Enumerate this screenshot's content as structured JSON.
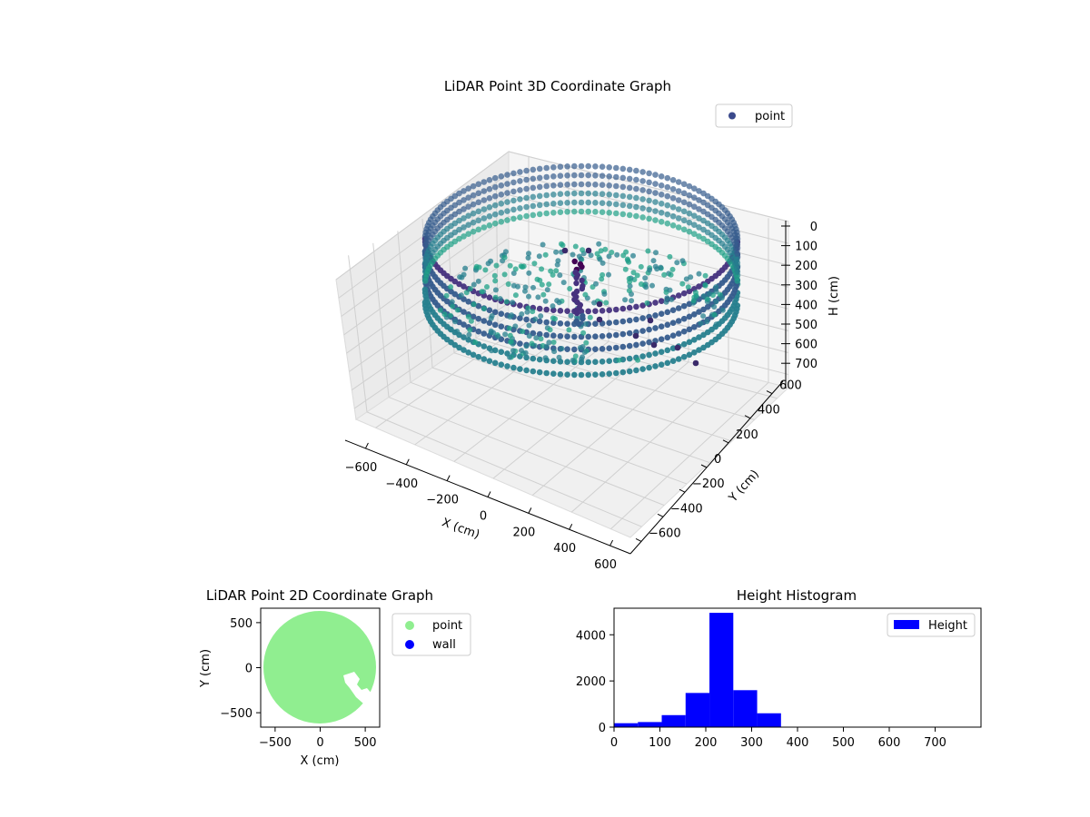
{
  "chart_data": [
    {
      "type": "scatter",
      "projection": "3d",
      "title": "LiDAR Point 3D Coordinate Graph",
      "xlabel": "X (cm)",
      "ylabel": "Y (cm)",
      "zlabel": "H (cm)",
      "xlim": [
        -700,
        700
      ],
      "ylim": [
        -700,
        700
      ],
      "zlim": [
        0,
        760
      ],
      "z_inverted": true,
      "x_ticks": [
        "−600",
        "−400",
        "−200",
        "0",
        "200",
        "400",
        "600"
      ],
      "y_ticks": [
        "−600",
        "−400",
        "−200",
        "0",
        "200",
        "400",
        "600"
      ],
      "z_ticks": [
        "0",
        "100",
        "200",
        "300",
        "400",
        "500",
        "600",
        "700"
      ],
      "grid": true,
      "colormap": "viridis",
      "legend": {
        "position": "top-right",
        "entries": [
          "point"
        ]
      },
      "series": [
        {
          "name": "point",
          "color": "#3b4a8c",
          "description_values": {
            "outer_wall_radius_cm": 650,
            "wall_height_range_cm": [
              0,
              260
            ],
            "floor_height_cm": 240,
            "opening_x_cm": [
              150,
              600
            ],
            "opening_y_cm": [
              -250,
              100
            ]
          }
        }
      ]
    },
    {
      "type": "scatter",
      "title": "LiDAR Point 2D Coordinate Graph",
      "xlabel": "X (cm)",
      "ylabel": "Y (cm)",
      "xlim": [
        -660,
        660
      ],
      "ylim": [
        -660,
        660
      ],
      "x_ticks": [
        "−500",
        "0",
        "500"
      ],
      "y_ticks": [
        "500",
        "0",
        "−500"
      ],
      "legend": {
        "position": "outside-right",
        "entries": [
          "point",
          "wall"
        ]
      },
      "series": [
        {
          "name": "point",
          "color": "#90ee90",
          "center": [
            0,
            0
          ],
          "radius": 600
        },
        {
          "name": "wall",
          "color": "#0000ff"
        }
      ]
    },
    {
      "type": "bar",
      "title": "Height Histogram",
      "xlim": [
        0,
        800
      ],
      "ylim": [
        0,
        5150
      ],
      "x_ticks": [
        "0",
        "100",
        "200",
        "300",
        "400",
        "500",
        "600",
        "700"
      ],
      "y_ticks": [
        "0",
        "2000",
        "4000"
      ],
      "legend": {
        "position": "top-right",
        "entries": [
          "Height"
        ]
      },
      "bin_width": 52,
      "bins": [
        {
          "x0": 0,
          "count": 170
        },
        {
          "x0": 52,
          "count": 220
        },
        {
          "x0": 104,
          "count": 520
        },
        {
          "x0": 156,
          "count": 1480
        },
        {
          "x0": 208,
          "count": 4950
        },
        {
          "x0": 260,
          "count": 1600
        },
        {
          "x0": 312,
          "count": 600
        },
        {
          "x0": 364,
          "count": 0
        }
      ],
      "series": [
        {
          "name": "Height",
          "color": "#0000ff"
        }
      ]
    }
  ]
}
